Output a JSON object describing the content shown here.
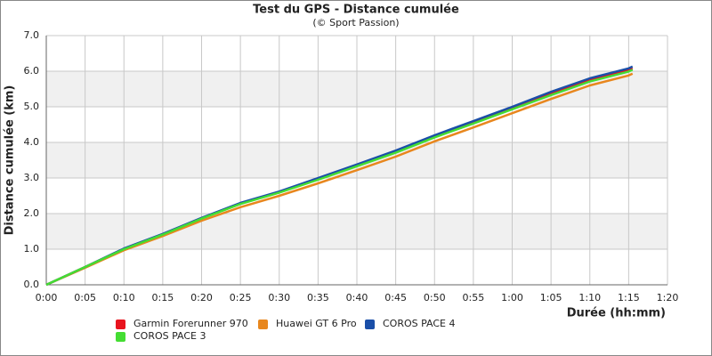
{
  "chart_data": {
    "type": "line",
    "title": "Test du GPS - Distance cumulée",
    "subtitle": "(© Sport Passion)",
    "x_label": "Durée (hh:mm)",
    "y_label": "Distance cumulée (km)",
    "x": [
      0,
      5,
      10,
      15,
      20,
      25,
      30,
      35,
      40,
      45,
      50,
      55,
      60,
      65,
      70,
      75,
      75.5
    ],
    "series": [
      {
        "name": "Garmin Forerunner 970",
        "color": "#e8141e",
        "values": [
          0,
          0.5,
          1.01,
          1.42,
          1.87,
          2.28,
          2.6,
          2.97,
          3.35,
          3.74,
          4.17,
          4.56,
          4.96,
          5.37,
          5.75,
          6.03,
          6.08
        ]
      },
      {
        "name": "Huawei GT 6 Pro",
        "color": "#e8871e",
        "values": [
          0,
          0.48,
          0.97,
          1.37,
          1.8,
          2.18,
          2.5,
          2.85,
          3.22,
          3.6,
          4.03,
          4.42,
          4.82,
          5.22,
          5.6,
          5.88,
          5.93
        ]
      },
      {
        "name": "COROS PACE 4",
        "color": "#1a4fa8",
        "values": [
          0,
          0.5,
          1.02,
          1.43,
          1.88,
          2.3,
          2.62,
          3.0,
          3.38,
          3.77,
          4.2,
          4.6,
          5.0,
          5.42,
          5.8,
          6.08,
          6.13
        ]
      },
      {
        "name": "COROS PACE 3",
        "color": "#44dd33",
        "values": [
          0,
          0.5,
          1.0,
          1.41,
          1.86,
          2.27,
          2.59,
          2.95,
          3.33,
          3.71,
          4.14,
          4.53,
          4.93,
          5.33,
          5.71,
          5.99,
          6.04
        ]
      }
    ],
    "xlim": [
      0,
      80
    ],
    "xticks": [
      {
        "value": 0,
        "label": "0:00"
      },
      {
        "value": 5,
        "label": "0:05"
      },
      {
        "value": 10,
        "label": "0:10"
      },
      {
        "value": 15,
        "label": "0:15"
      },
      {
        "value": 20,
        "label": "0:20"
      },
      {
        "value": 25,
        "label": "0:25"
      },
      {
        "value": 30,
        "label": "0:30"
      },
      {
        "value": 35,
        "label": "0:35"
      },
      {
        "value": 40,
        "label": "0:40"
      },
      {
        "value": 45,
        "label": "0:45"
      },
      {
        "value": 50,
        "label": "0:50"
      },
      {
        "value": 55,
        "label": "0:55"
      },
      {
        "value": 60,
        "label": "1:00"
      },
      {
        "value": 65,
        "label": "1:05"
      },
      {
        "value": 70,
        "label": "1:10"
      },
      {
        "value": 75,
        "label": "1:15"
      },
      {
        "value": 80,
        "label": "1:20"
      }
    ],
    "ylim": [
      0,
      7
    ],
    "yticks": [
      {
        "value": 0,
        "label": "0.0"
      },
      {
        "value": 1,
        "label": "1.0"
      },
      {
        "value": 2,
        "label": "2.0"
      },
      {
        "value": 3,
        "label": "3.0"
      },
      {
        "value": 4,
        "label": "4.0"
      },
      {
        "value": 5,
        "label": "5.0"
      },
      {
        "value": 6,
        "label": "6.0"
      },
      {
        "value": 7,
        "label": "7.0"
      }
    ],
    "grid": true
  }
}
